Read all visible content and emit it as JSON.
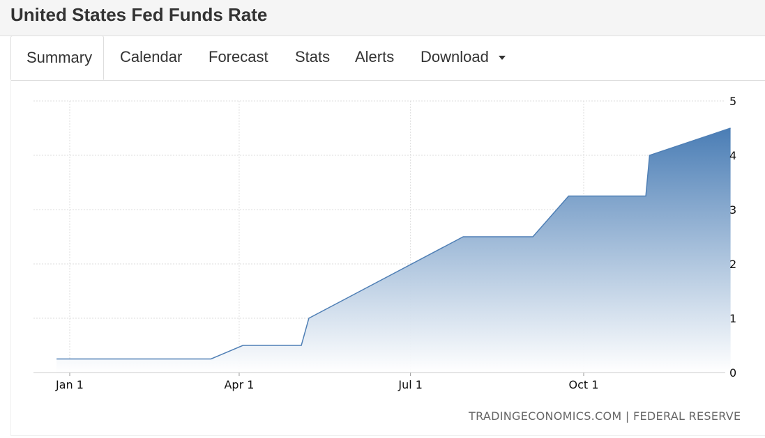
{
  "page": {
    "title": "United States Fed Funds Rate"
  },
  "tabs": [
    {
      "label": "Summary",
      "active": true
    },
    {
      "label": "Calendar"
    },
    {
      "label": "Forecast"
    },
    {
      "label": "Stats"
    },
    {
      "label": "Alerts"
    },
    {
      "label": "Download"
    }
  ],
  "source_label": "TRADINGECONOMICS.COM | FEDERAL RESERVE",
  "colors": {
    "line": "#4f7fb5",
    "fill_top": "#4a7db5",
    "fill_bottom": "#ffffff",
    "grid": "#dedede"
  },
  "chart_data": {
    "type": "area",
    "title": "",
    "xlabel": "",
    "ylabel": "",
    "x_ticks": [
      "Jan 1",
      "Apr 1",
      "Jul 1",
      "Oct 1"
    ],
    "y_ticks": [
      "0",
      "1",
      "2",
      "3",
      "4",
      "5"
    ],
    "ylim": [
      0,
      5
    ],
    "y_axis_position": "right",
    "grid": true,
    "step": true,
    "series": [
      {
        "points": [
          {
            "x": "Dec 25",
            "y": 0.25
          },
          {
            "x": "Mar 17",
            "y": 0.25
          },
          {
            "x": "Apr 3",
            "y": 0.5
          },
          {
            "x": "May 4",
            "y": 0.5
          },
          {
            "x": "May 8",
            "y": 1.0
          },
          {
            "x": "Jul 29",
            "y": 2.5
          },
          {
            "x": "Sep 4",
            "y": 2.5
          },
          {
            "x": "Sep 23",
            "y": 3.25
          },
          {
            "x": "Nov 3",
            "y": 3.25
          },
          {
            "x": "Nov 5",
            "y": 4.0
          },
          {
            "x": "Dec 18",
            "y": 4.5
          }
        ]
      }
    ]
  }
}
